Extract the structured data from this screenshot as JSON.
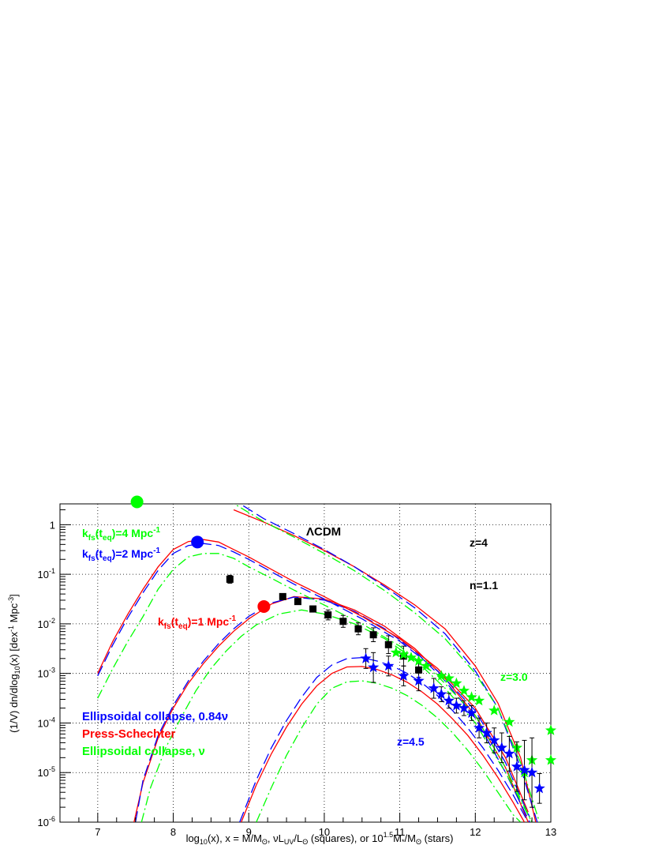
{
  "chart_data": {
    "type": "line",
    "x_axis": {
      "label_parts": [
        "log",
        "10",
        "(x),  x = M/M",
        "ʘ",
        ", νL",
        "UV",
        "/L",
        "ʘ",
        " (squares), or 10",
        "1.5",
        "M",
        "*",
        "/M",
        "ʘ",
        " (stars)"
      ],
      "min": 6.5,
      "max": 13.0,
      "ticks": [
        "7",
        "8",
        "9",
        "10",
        "11",
        "12",
        "13"
      ],
      "tick_values": [
        7,
        8,
        9,
        10,
        11,
        12,
        13
      ]
    },
    "y_axis": {
      "label_parts": [
        "(1/V) dn/dlog",
        "10",
        "(x)  [dex",
        "-1",
        " Mpc",
        "-3",
        "]"
      ],
      "scale": "log",
      "min_exp": -6,
      "max_exp": 0.42,
      "ticks": [
        {
          "exp": 0,
          "label": "1"
        },
        {
          "exp": -1,
          "mant": "10",
          "sup": "-1"
        },
        {
          "exp": -2,
          "mant": "10",
          "sup": "-2"
        },
        {
          "exp": -3,
          "mant": "10",
          "sup": "-3"
        },
        {
          "exp": -4,
          "mant": "10",
          "sup": "-4"
        },
        {
          "exp": -5,
          "mant": "10",
          "sup": "-5"
        },
        {
          "exp": -6,
          "mant": "10",
          "sup": "-6"
        }
      ]
    },
    "grid": true,
    "colors": {
      "red": "#ff0000",
      "blue": "#0000ff",
      "green": "#00ff00",
      "black": "#000000"
    },
    "annotations": {
      "lcdm": "ΛCDM",
      "z4": "z=4",
      "n": "n=1.1",
      "z30": "z=3.0",
      "z45": "z=4.5",
      "kfs4": {
        "pre": "k",
        "sub1": "fs",
        "mid": "(t",
        "sub2": "eq",
        "post": ")=4 Mpc",
        "sup": "-1"
      },
      "kfs2": {
        "pre": "k",
        "sub1": "fs",
        "mid": "(t",
        "sub2": "eq",
        "post": ")=2 Mpc",
        "sup": "-1"
      },
      "kfs1": {
        "pre": "k",
        "sub1": "fs",
        "mid": "(t",
        "sub2": "eq",
        "post": ")=1 Mpc",
        "sup": "-1"
      }
    },
    "legend": [
      {
        "label": "Ellipsoidal collapse, 0.84ν",
        "color": "#0000ff"
      },
      {
        "label": "Press-Schechter",
        "color": "#ff0000"
      },
      {
        "label": "Ellipsoidal collapse, ν",
        "color": "#00ff00"
      }
    ],
    "series": [
      {
        "color": "#ff0000",
        "style": "solid",
        "x": [
          8.8,
          9.2,
          9.6,
          10.0,
          10.4,
          10.8,
          11.2,
          11.6,
          12.0,
          12.3,
          12.6,
          12.8
        ],
        "y_log": [
          0.3,
          0.05,
          -0.22,
          -0.52,
          -0.85,
          -1.22,
          -1.62,
          -2.1,
          -2.85,
          -3.6,
          -4.7,
          -6.0
        ]
      },
      {
        "color": "#0000ff",
        "style": "dashed",
        "x": [
          8.75,
          9.2,
          9.6,
          10.0,
          10.4,
          10.8,
          11.2,
          11.6,
          12.0,
          12.3,
          12.6,
          12.82
        ],
        "y_log": [
          0.55,
          0.12,
          -0.18,
          -0.5,
          -0.85,
          -1.25,
          -1.68,
          -2.2,
          -2.95,
          -3.7,
          -4.9,
          -6.0
        ]
      },
      {
        "color": "#00ff00",
        "style": "dashdot",
        "x": [
          8.7,
          9.2,
          9.6,
          10.0,
          10.4,
          10.8,
          11.2,
          11.6,
          12.0,
          12.3,
          12.6,
          12.85
        ],
        "y_log": [
          0.52,
          0.06,
          -0.25,
          -0.58,
          -0.93,
          -1.33,
          -1.78,
          -2.3,
          -3.0,
          -3.7,
          -4.8,
          -6.0
        ]
      },
      {
        "color": "#ff0000",
        "style": "solid",
        "x": [
          7.48,
          7.6,
          7.8,
          8.0,
          8.2,
          8.4,
          8.6,
          8.8,
          9.0,
          9.3,
          9.6,
          10.0,
          10.4,
          10.8,
          11.2,
          11.6,
          12.0,
          12.4,
          12.7
        ],
        "y_log": [
          -6.0,
          -5.2,
          -4.3,
          -3.7,
          -3.2,
          -2.8,
          -2.45,
          -2.15,
          -1.9,
          -1.6,
          -1.45,
          -1.5,
          -1.72,
          -2.05,
          -2.5,
          -3.1,
          -3.85,
          -4.9,
          -6.0
        ]
      },
      {
        "color": "#0000ff",
        "style": "dashed",
        "x": [
          7.5,
          7.6,
          7.8,
          8.0,
          8.2,
          8.4,
          8.6,
          8.8,
          9.0,
          9.3,
          9.6,
          10.0,
          10.4,
          10.8,
          11.2,
          11.6,
          12.0,
          12.4,
          12.72
        ],
        "y_log": [
          -6.0,
          -5.15,
          -4.25,
          -3.65,
          -3.15,
          -2.75,
          -2.4,
          -2.1,
          -1.85,
          -1.58,
          -1.46,
          -1.52,
          -1.75,
          -2.1,
          -2.55,
          -3.15,
          -3.9,
          -5.0,
          -6.0
        ]
      },
      {
        "color": "#00ff00",
        "style": "dashdot",
        "x": [
          7.58,
          7.7,
          7.9,
          8.1,
          8.3,
          8.5,
          8.7,
          8.9,
          9.1,
          9.4,
          9.7,
          10.0,
          10.4,
          10.8,
          11.2,
          11.6,
          12.0,
          12.4,
          12.75
        ],
        "y_log": [
          -6.0,
          -5.3,
          -4.5,
          -3.9,
          -3.35,
          -2.9,
          -2.55,
          -2.25,
          -2.02,
          -1.8,
          -1.72,
          -1.8,
          -2.0,
          -2.3,
          -2.72,
          -3.3,
          -4.0,
          -5.0,
          -6.0
        ]
      },
      {
        "color": "#ff0000",
        "style": "solid",
        "x": [
          7.0,
          7.2,
          7.4,
          7.6,
          7.8,
          8.0,
          8.2,
          8.4,
          8.6,
          8.8,
          9.0,
          9.3,
          9.6,
          10.0,
          10.5,
          11.0,
          11.5,
          12.0,
          12.4,
          12.7
        ],
        "y_log": [
          -3.0,
          -2.35,
          -1.8,
          -1.3,
          -0.85,
          -0.5,
          -0.34,
          -0.3,
          -0.35,
          -0.5,
          -0.65,
          -0.9,
          -1.15,
          -1.45,
          -1.85,
          -2.3,
          -2.9,
          -3.7,
          -4.7,
          -5.8
        ]
      },
      {
        "color": "#0000ff",
        "style": "dashed",
        "x": [
          7.0,
          7.2,
          7.4,
          7.6,
          7.8,
          8.0,
          8.2,
          8.4,
          8.6,
          8.8,
          9.0,
          9.3,
          9.6,
          10.0,
          10.5,
          11.0,
          11.5,
          12.0,
          12.4,
          12.72
        ],
        "y_log": [
          -3.05,
          -2.42,
          -1.87,
          -1.37,
          -0.92,
          -0.58,
          -0.42,
          -0.38,
          -0.42,
          -0.55,
          -0.7,
          -0.95,
          -1.2,
          -1.5,
          -1.9,
          -2.35,
          -2.95,
          -3.75,
          -4.8,
          -5.9
        ]
      },
      {
        "color": "#00ff00",
        "style": "dashdot",
        "x": [
          7.0,
          7.2,
          7.4,
          7.6,
          7.8,
          8.0,
          8.2,
          8.4,
          8.6,
          8.8,
          9.0,
          9.3,
          9.6,
          10.0,
          10.5,
          11.0,
          11.5,
          12.0,
          12.4,
          12.75
        ],
        "y_log": [
          -3.5,
          -2.9,
          -2.35,
          -1.85,
          -1.3,
          -0.9,
          -0.65,
          -0.58,
          -0.58,
          -0.68,
          -0.85,
          -1.08,
          -1.32,
          -1.62,
          -2.0,
          -2.45,
          -3.05,
          -3.85,
          -4.9,
          -6.0
        ]
      },
      {
        "color": "#ff0000",
        "style": "solid",
        "x": [
          8.9,
          9.1,
          9.3,
          9.5,
          9.7,
          9.9,
          10.1,
          10.3,
          10.5,
          10.7,
          10.9,
          11.1,
          11.3,
          11.5,
          11.7,
          11.9,
          12.1,
          12.3,
          12.5,
          12.65
        ],
        "y_log": [
          -6.0,
          -5.25,
          -4.62,
          -4.08,
          -3.62,
          -3.25,
          -3.0,
          -2.87,
          -2.86,
          -2.92,
          -3.03,
          -3.18,
          -3.38,
          -3.62,
          -3.92,
          -4.25,
          -4.65,
          -5.1,
          -5.6,
          -6.0
        ]
      },
      {
        "color": "#0000ff",
        "style": "dashed",
        "x": [
          8.88,
          9.1,
          9.3,
          9.5,
          9.7,
          9.9,
          10.1,
          10.3,
          10.5,
          10.7,
          10.9,
          11.1,
          11.3,
          11.5,
          11.7,
          11.9,
          12.1,
          12.3,
          12.5,
          12.7
        ],
        "y_log": [
          -6.0,
          -5.15,
          -4.5,
          -3.95,
          -3.48,
          -3.08,
          -2.83,
          -2.7,
          -2.68,
          -2.75,
          -2.85,
          -3.0,
          -3.2,
          -3.45,
          -3.75,
          -4.1,
          -4.5,
          -4.95,
          -5.45,
          -6.0
        ]
      },
      {
        "color": "#00ff00",
        "style": "dashdot",
        "x": [
          9.1,
          9.3,
          9.5,
          9.7,
          9.9,
          10.1,
          10.3,
          10.5,
          10.7,
          10.9,
          11.1,
          11.3,
          11.5,
          11.7,
          11.9,
          12.1,
          12.3,
          12.5,
          12.6
        ],
        "y_log": [
          -6.0,
          -5.3,
          -4.65,
          -4.1,
          -3.62,
          -3.3,
          -3.17,
          -3.15,
          -3.2,
          -3.3,
          -3.45,
          -3.65,
          -3.9,
          -4.2,
          -4.55,
          -4.95,
          -5.4,
          -5.85,
          -6.0
        ]
      }
    ],
    "points_squares": {
      "color": "#000000",
      "marker": "square",
      "x": [
        8.75,
        9.45,
        9.65,
        9.85,
        10.05,
        10.25,
        10.45,
        10.65,
        10.85,
        11.05,
        11.25
      ],
      "y_log": [
        -1.1,
        -1.45,
        -1.55,
        -1.7,
        -1.82,
        -1.95,
        -2.1,
        -2.22,
        -2.42,
        -2.65,
        -2.93
      ],
      "err": [
        0.08,
        0.06,
        0.06,
        0.06,
        0.1,
        0.12,
        0.12,
        0.14,
        0.18,
        0.2,
        0.15
      ]
    },
    "points_stars_blue": {
      "color": "#0000ff",
      "marker": "star",
      "x": [
        10.55,
        10.65,
        10.85,
        11.05,
        11.25,
        11.45,
        11.55,
        11.65,
        11.75,
        11.85,
        11.95,
        12.05,
        12.15,
        12.25,
        12.35,
        12.45,
        12.55,
        12.65,
        12.75,
        12.85
      ],
      "y_log": [
        -2.7,
        -2.88,
        -2.85,
        -3.05,
        -3.15,
        -3.3,
        -3.42,
        -3.55,
        -3.65,
        -3.7,
        -3.8,
        -4.1,
        -4.2,
        -4.35,
        -4.5,
        -4.62,
        -4.88,
        -4.95,
        -5.0,
        -5.32
      ],
      "err": [
        0.2,
        0.3,
        0.2,
        0.2,
        0.2,
        0.2,
        0.15,
        0.15,
        0.15,
        0.15,
        0.15,
        0.2,
        0.2,
        0.25,
        0.3,
        0.35,
        0.5,
        0.6,
        0.7,
        0.3
      ]
    },
    "points_stars_green": {
      "color": "#00ff00",
      "marker": "star",
      "x": [
        10.95,
        11.05,
        11.15,
        11.25,
        11.35,
        11.55,
        11.65,
        11.75,
        11.85,
        11.95,
        12.05,
        12.25,
        12.45,
        12.55,
        12.65,
        12.75,
        13.0,
        13.0
      ],
      "y_log": [
        -2.58,
        -2.62,
        -2.68,
        -2.75,
        -2.85,
        -3.05,
        -3.1,
        -3.2,
        -3.35,
        -3.48,
        -3.55,
        -3.75,
        -3.98,
        -4.5,
        -5.0,
        -4.75,
        -4.15,
        -4.75
      ],
      "err": [
        0,
        0,
        0,
        0,
        0,
        0,
        0,
        0,
        0,
        0,
        0,
        0,
        0,
        0,
        0,
        0,
        0,
        0
      ]
    },
    "markers_circles": [
      {
        "name": "circle-kfs4",
        "x": 7.52,
        "y_log": 0.46,
        "color": "#00ff00"
      },
      {
        "name": "circle-kfs2",
        "x": 8.32,
        "y_log": -0.35,
        "color": "#0000ff"
      },
      {
        "name": "circle-kfs1",
        "x": 9.2,
        "y_log": -1.65,
        "color": "#ff0000"
      }
    ]
  }
}
